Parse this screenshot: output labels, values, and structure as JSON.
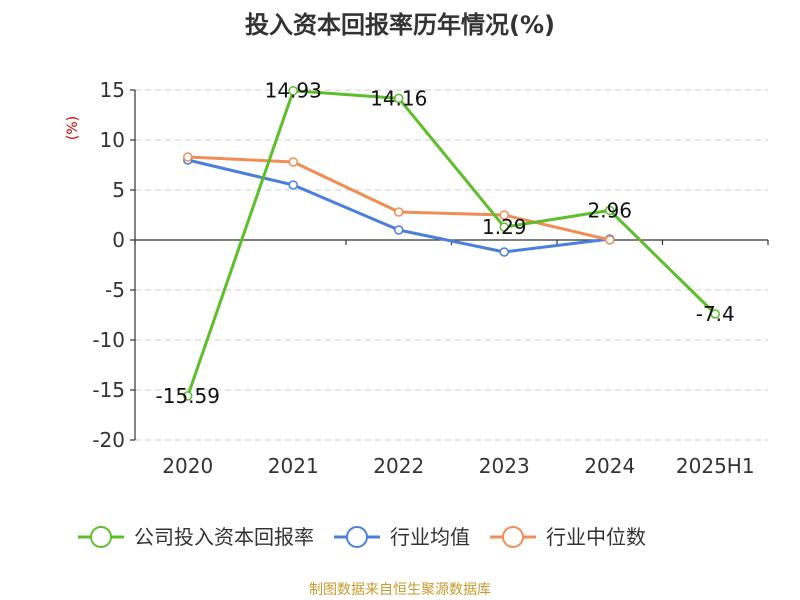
{
  "chart_data": {
    "type": "line",
    "title": "投入资本回报率历年情况(%)",
    "ylabel": "(%)",
    "categories": [
      "2020",
      "2021",
      "2022",
      "2023",
      "2024",
      "2025H1"
    ],
    "ylim": [
      -20,
      15
    ],
    "yticks": [
      15,
      10,
      5,
      0,
      -5,
      -10,
      -15,
      -20
    ],
    "grid": true,
    "legend_position": "bottom",
    "series": [
      {
        "name": "公司投入资本回报率",
        "color": "#5cbf2a",
        "values": [
          -15.59,
          14.93,
          14.16,
          1.29,
          2.96,
          -7.4
        ],
        "labels": [
          "-15.59",
          "14.93",
          "14.16",
          "1.29",
          "2.96",
          "-7.4"
        ]
      },
      {
        "name": "行业均值",
        "color": "#4a7fdb",
        "values": [
          8.0,
          5.5,
          1.0,
          -1.2,
          0.1,
          null
        ]
      },
      {
        "name": "行业中位数",
        "color": "#f28c55",
        "values": [
          8.3,
          7.8,
          2.8,
          2.5,
          0.0,
          null
        ]
      }
    ]
  },
  "source_note": "制图数据来自恒生聚源数据库"
}
